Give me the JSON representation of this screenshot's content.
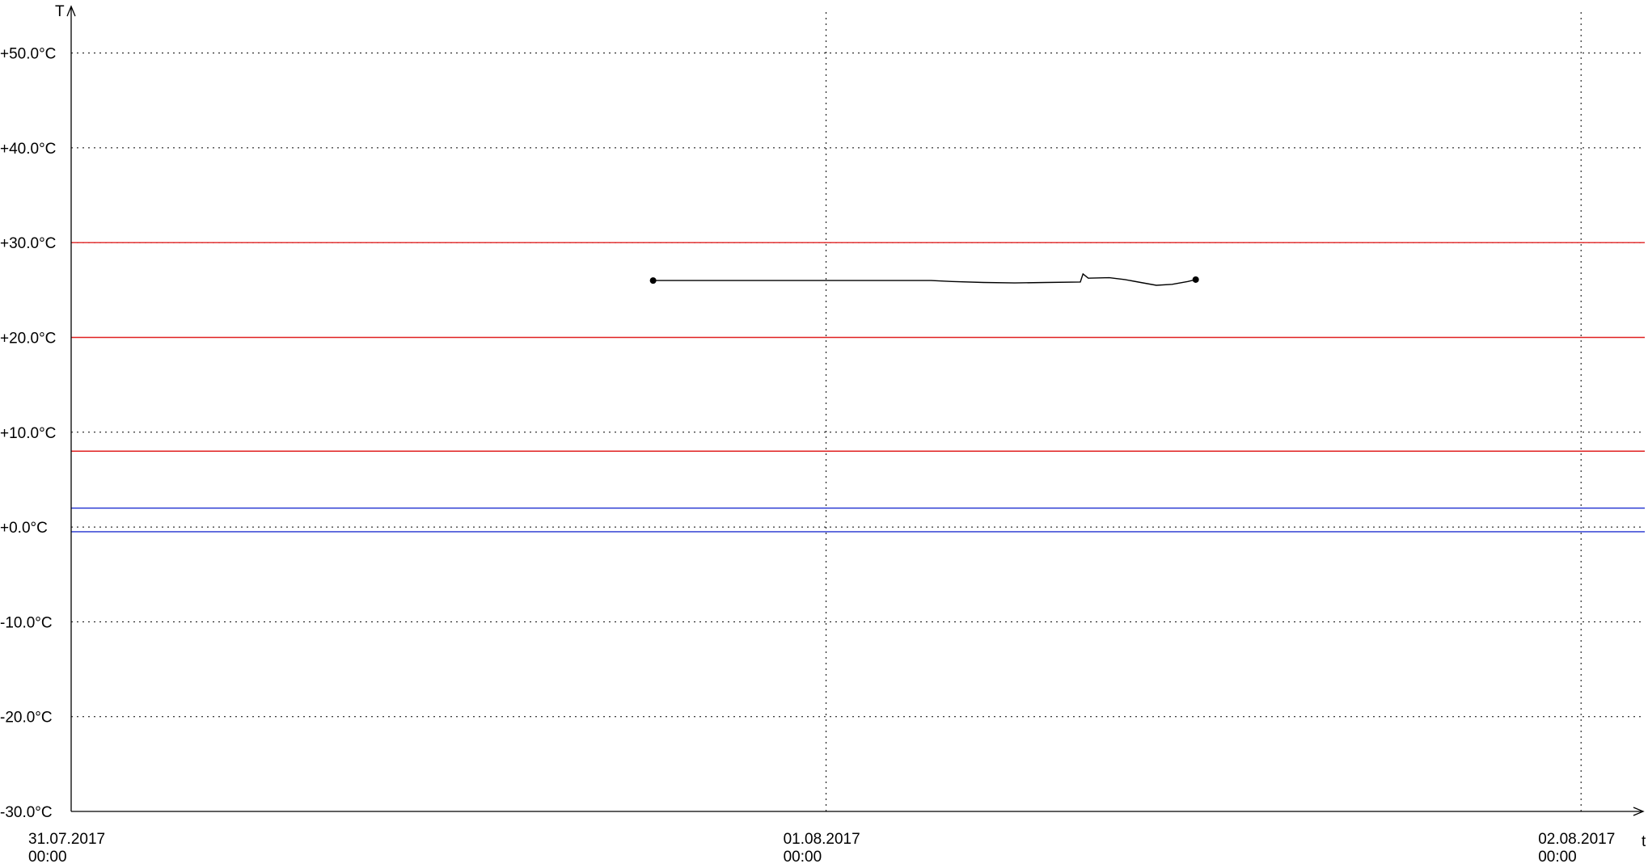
{
  "chart_data": {
    "type": "line",
    "y_axis_label": "T",
    "x_axis_label": "t",
    "ylim": [
      -30,
      55
    ],
    "xlim": [
      "2017-07-31 00:00",
      "2017-08-02 02:00"
    ],
    "y_ticks": [
      {
        "value": 50,
        "label": "+50.0°C"
      },
      {
        "value": 40,
        "label": "+40.0°C"
      },
      {
        "value": 30,
        "label": "+30.0°C"
      },
      {
        "value": 20,
        "label": "+20.0°C"
      },
      {
        "value": 10,
        "label": "+10.0°C"
      },
      {
        "value": 0,
        "label": "+0.0°C"
      },
      {
        "value": -10,
        "label": "-10.0°C"
      },
      {
        "value": -20,
        "label": "-20.0°C"
      },
      {
        "value": -30,
        "label": "-30.0°C"
      }
    ],
    "x_ticks": [
      {
        "value": "2017-07-31 00:00",
        "date": "31.07.2017",
        "time": "00:00",
        "grid": false
      },
      {
        "value": "2017-08-01 00:00",
        "date": "01.08.2017",
        "time": "00:00",
        "grid": true
      },
      {
        "value": "2017-08-02 00:00",
        "date": "02.08.2017",
        "time": "00:00",
        "grid": true
      }
    ],
    "grid": true,
    "threshold_lines": [
      {
        "value": 30,
        "color": "#e02020"
      },
      {
        "value": 20,
        "color": "#e02020"
      },
      {
        "value": 8,
        "color": "#e02020"
      },
      {
        "value": 2,
        "color": "#2030d0"
      },
      {
        "value": -0.5,
        "color": "#2030d0"
      }
    ],
    "series": [
      {
        "color": "#000000",
        "endpoint_markers": true,
        "points": [
          {
            "x": "2017-07-31 18:30",
            "y": 26.0
          },
          {
            "x": "2017-08-01 03:20",
            "y": 26.0
          },
          {
            "x": "2017-08-01 04:00",
            "y": 25.9
          },
          {
            "x": "2017-08-01 05:00",
            "y": 25.8
          },
          {
            "x": "2017-08-01 06:00",
            "y": 25.75
          },
          {
            "x": "2017-08-01 07:00",
            "y": 25.8
          },
          {
            "x": "2017-08-01 08:05",
            "y": 25.85
          },
          {
            "x": "2017-08-01 08:10",
            "y": 26.7
          },
          {
            "x": "2017-08-01 08:20",
            "y": 26.25
          },
          {
            "x": "2017-08-01 09:00",
            "y": 26.3
          },
          {
            "x": "2017-08-01 09:30",
            "y": 26.1
          },
          {
            "x": "2017-08-01 10:00",
            "y": 25.8
          },
          {
            "x": "2017-08-01 10:30",
            "y": 25.5
          },
          {
            "x": "2017-08-01 11:00",
            "y": 25.6
          },
          {
            "x": "2017-08-01 11:30",
            "y": 25.9
          },
          {
            "x": "2017-08-01 11:45",
            "y": 26.1
          }
        ]
      }
    ]
  }
}
